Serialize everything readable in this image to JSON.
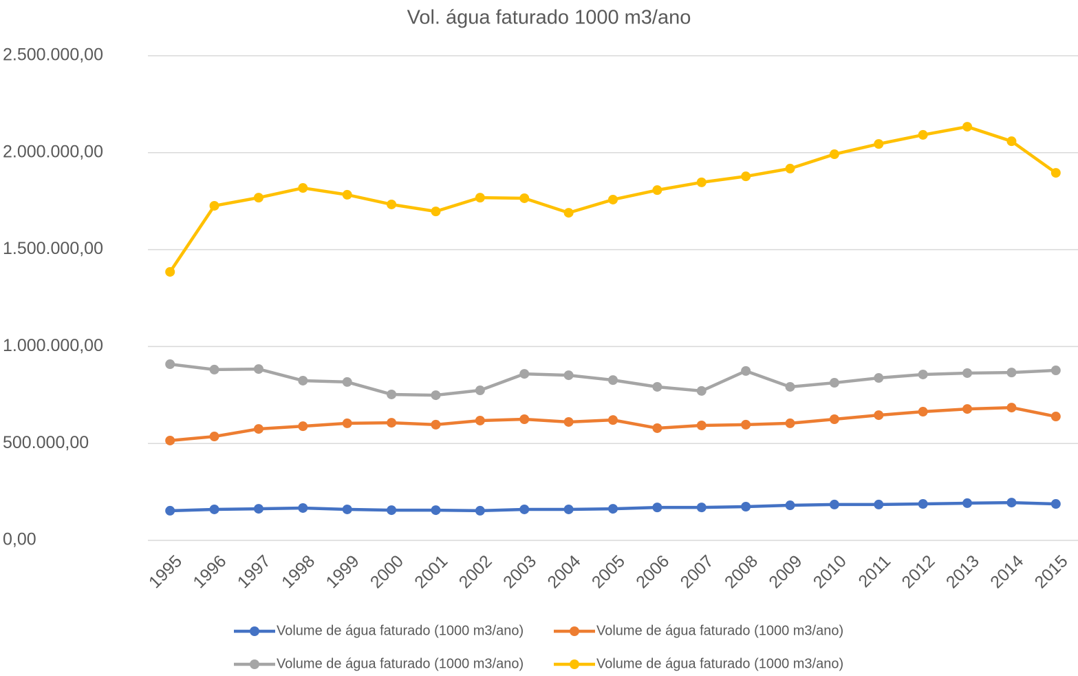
{
  "chart_data": {
    "type": "line",
    "title": "Vol. água faturado 1000 m3/ano",
    "categories": [
      "1995",
      "1996",
      "1997",
      "1998",
      "1999",
      "2000",
      "2001",
      "2002",
      "2003",
      "2004",
      "2005",
      "2006",
      "2007",
      "2008",
      "2009",
      "2010",
      "2011",
      "2012",
      "2013",
      "2014",
      "2015"
    ],
    "series": [
      {
        "name": "Volume de água faturado (1000 m3/ano)",
        "color": "#4472c4",
        "values": [
          153000,
          160000,
          163000,
          167000,
          160000,
          156000,
          156000,
          153000,
          160000,
          160000,
          163000,
          170000,
          170000,
          174000,
          181000,
          185000,
          185000,
          188000,
          192000,
          195000,
          188000
        ]
      },
      {
        "name": "Volume de água faturado (1000 m3/ano)",
        "color": "#ed7d31",
        "values": [
          515000,
          536000,
          575000,
          589000,
          604000,
          607000,
          597000,
          618000,
          625000,
          611000,
          621000,
          579000,
          593000,
          597000,
          604000,
          625000,
          646000,
          664000,
          678000,
          685000,
          639000
        ]
      },
      {
        "name": "Volume de água faturado (1000 m3/ano)",
        "color": "#a5a5a5",
        "values": [
          909000,
          881000,
          884000,
          824000,
          817000,
          753000,
          749000,
          774000,
          859000,
          852000,
          827000,
          792000,
          771000,
          874000,
          792000,
          813000,
          838000,
          856000,
          863000,
          866000,
          877000
        ]
      },
      {
        "name": "Volume de água faturado (1000 m3/ano)",
        "color": "#ffc000",
        "values": [
          1385000,
          1726000,
          1768000,
          1818000,
          1783000,
          1733000,
          1697000,
          1768000,
          1765000,
          1690000,
          1758000,
          1807000,
          1847000,
          1878000,
          1918000,
          1992000,
          2045000,
          2092000,
          2134000,
          2059000,
          1896000
        ]
      }
    ],
    "ylim": [
      0,
      2500000
    ],
    "yticks": [
      {
        "value": 0,
        "label": "0,00"
      },
      {
        "value": 500000,
        "label": "500.000,00"
      },
      {
        "value": 1000000,
        "label": "1.000.000,00"
      },
      {
        "value": 1500000,
        "label": "1.500.000,00"
      },
      {
        "value": 2000000,
        "label": "2.000.000,00"
      },
      {
        "value": 2500000,
        "label": "2.500.000,00"
      }
    ],
    "grid": true,
    "legend": "bottom"
  }
}
